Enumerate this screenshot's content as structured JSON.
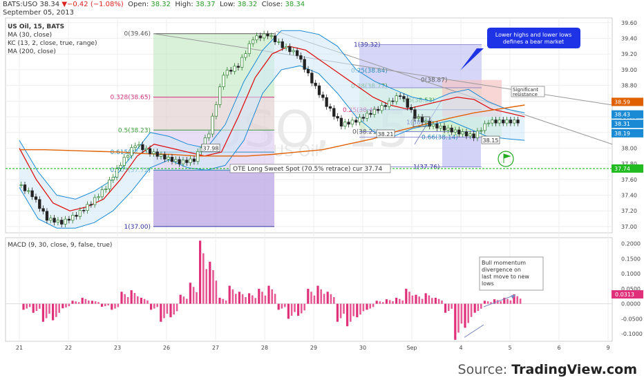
{
  "header": {
    "symbol": "BATS:USO",
    "last": "38.34",
    "change": "▼−0.42 (−1.08%)",
    "open_label": "Open:",
    "open": "38.32",
    "high_label": "High:",
    "high": "38.37",
    "low_label": "Low:",
    "low": "38.32",
    "close_label": "Close:",
    "close": "38.34",
    "date": "September 05, 2013"
  },
  "legend": [
    "US Oil, 15, BATS",
    "MA (30, close)",
    "KC (13, 2, close, true, range)",
    "MA (200, close)"
  ],
  "watermark": {
    "big": "USO, 15",
    "small": "US Oil"
  },
  "macd_title": "MACD (9, 30, close, 9, false, true)",
  "footer": {
    "prefix": "Source: ",
    "brand": "TradingView.com"
  },
  "colors": {
    "price_up": "#2a9d2a",
    "price_down": "#d22",
    "ma30": "#d11",
    "ma200": "#e06000",
    "kc": "#1a8ad4",
    "hist": "#e0307a",
    "ote": "#22bb22"
  },
  "chart_data": [
    {
      "type": "line",
      "title": "US Oil, 15, BATS",
      "x_ticks": [
        "21",
        "22",
        "23",
        "26",
        "27",
        "28",
        "29",
        "30",
        "Sep",
        "4",
        "5",
        "6",
        "9"
      ],
      "y_ticks": [
        "37.00",
        "37.20",
        "37.40",
        "37.60",
        "37.80",
        "38.00",
        "38.20",
        "38.40",
        "38.60",
        "38.80",
        "39.00",
        "39.20",
        "39.40",
        "39.60"
      ],
      "ylim": [
        36.92,
        39.66
      ],
      "price_x": [
        0,
        0.3,
        0.6,
        0.9,
        1.2,
        1.5,
        1.8,
        2.1,
        2.4,
        2.7,
        3.0,
        3.3,
        3.6,
        3.9,
        4.2,
        4.5,
        4.8,
        5.1,
        5.4,
        5.7,
        6.0,
        6.3,
        6.6,
        6.9,
        7.2,
        7.5,
        7.8,
        8.1,
        8.4,
        8.7,
        9.0,
        9.3,
        9.6,
        9.9,
        10.2
      ],
      "price_close": [
        37.55,
        37.4,
        37.1,
        37.05,
        37.15,
        37.3,
        37.5,
        37.8,
        38.05,
        37.95,
        37.88,
        37.82,
        37.85,
        38.2,
        38.95,
        39.05,
        39.4,
        39.45,
        39.3,
        39.2,
        38.85,
        38.55,
        38.3,
        38.35,
        38.45,
        38.55,
        38.68,
        38.4,
        38.3,
        38.25,
        38.2,
        38.15,
        38.34,
        38.34,
        38.34
      ],
      "ma30": [
        38.0,
        37.6,
        37.3,
        37.2,
        37.25,
        37.35,
        37.6,
        37.9,
        38.05,
        38.0,
        37.95,
        37.9,
        37.95,
        38.4,
        38.9,
        39.2,
        39.3,
        39.25,
        39.1,
        38.95,
        38.8,
        38.65,
        38.55,
        38.5,
        38.55,
        38.6,
        38.65,
        38.62,
        38.5,
        38.45,
        38.4
      ],
      "ma200": [
        37.98,
        37.98,
        37.97,
        37.96,
        37.95,
        37.93,
        37.92,
        37.9,
        37.9,
        37.9,
        37.92,
        37.95,
        37.98,
        38.05,
        38.12,
        38.22,
        38.3,
        38.38,
        38.45,
        38.5,
        38.55
      ],
      "kc_upper": [
        38.1,
        37.7,
        37.4,
        37.35,
        37.45,
        37.6,
        37.9,
        38.2,
        38.15,
        38.05,
        38.0,
        38.3,
        38.85,
        39.25,
        39.5,
        39.5,
        39.45,
        39.3,
        39.0,
        38.85,
        38.75,
        38.65,
        38.6,
        38.7,
        38.75,
        38.6,
        38.5,
        38.45
      ],
      "kc_lower": [
        37.5,
        37.1,
        36.98,
        36.98,
        37.05,
        37.2,
        37.45,
        37.75,
        37.85,
        37.75,
        37.72,
        37.78,
        38.1,
        38.7,
        39.0,
        39.05,
        38.95,
        38.7,
        38.4,
        38.2,
        38.15,
        38.25,
        38.3,
        38.35,
        38.25,
        38.15,
        38.12,
        38.1
      ],
      "fib_left": {
        "levels": [
          {
            "label": "0(39.46)",
            "value": 39.46
          },
          {
            "label": "0.328(38.65)",
            "value": 38.65
          },
          {
            "label": "0.5(38.23)",
            "value": 38.23
          },
          {
            "label": "0.615(37.95)",
            "value": 37.95
          },
          {
            "label": "0.705(37.72)",
            "value": 37.72
          },
          {
            "label": "1(37.00)",
            "value": 37.0
          }
        ]
      },
      "fib_right": {
        "levels": [
          {
            "label": "1(39.32)",
            "value": 39.32
          },
          {
            "label": "0.25(38.84)",
            "value": 38.84
          },
          {
            "label": "0.38(38.77)",
            "value": 38.77
          },
          {
            "label": "0.25(38.49)",
            "value": 38.49
          },
          {
            "label": "0.5(38.53)",
            "value": 38.53
          },
          {
            "label": "0(38.21)",
            "value": 38.21
          },
          {
            "label": "1(38.32)",
            "value": 38.32
          },
          {
            "label": "0.66(38.14)",
            "value": 38.14
          },
          {
            "label": "1(37.76)",
            "value": 37.76
          },
          {
            "label": "0(38.87)",
            "value": 38.87
          }
        ]
      },
      "price_labels": [
        "37.98",
        "38.21",
        "38.15"
      ],
      "axis_badges": [
        {
          "text": "38.59",
          "value": 38.59,
          "color": "#e06000"
        },
        {
          "text": "38.43",
          "value": 38.43,
          "color": "#1a8ad4"
        },
        {
          "text": "38.31",
          "value": 38.31,
          "color": "#1a8ad4"
        },
        {
          "text": "38.19",
          "value": 38.19,
          "color": "#1a8ad4"
        },
        {
          "text": "37.74",
          "value": 37.74,
          "color": "#22bb22"
        }
      ],
      "annotations": {
        "ote_text": "OTE Long Sweet Spot (70.5% retrace) cur 37.74",
        "ote_value": 37.74,
        "bear_note": "Lower highs and lower lows defines a bear market",
        "resistance_note": "Significant resistance",
        "bull_note": "Bull momentum divergence on last move to new lows"
      }
    },
    {
      "type": "bar",
      "title": "MACD (9, 30, close, 9, false, true)",
      "y_ticks": [
        "-0.1000",
        "-0.0500",
        "0.0000",
        "0.0500",
        "0.1000",
        "0.1500",
        "0.2000"
      ],
      "ylim": [
        -0.125,
        0.22
      ],
      "badge": "0.0313",
      "hist_x": [
        0,
        0.2,
        0.4,
        0.6,
        0.8,
        1.0,
        1.2,
        1.4,
        1.6,
        1.8,
        2.0,
        2.2,
        2.4,
        2.6,
        2.8,
        3.0,
        3.2,
        3.4,
        3.6,
        3.8,
        4.0,
        4.2,
        4.4,
        4.6,
        4.8,
        5.0,
        5.2,
        5.4,
        5.6,
        5.8,
        6.0,
        6.2,
        6.4,
        6.6,
        6.8,
        7.0,
        7.2,
        7.4,
        7.6,
        7.8,
        8.0,
        8.2,
        8.4,
        8.6,
        8.8,
        9.0,
        9.2,
        9.4,
        9.6,
        9.8,
        10.0
      ],
      "hist_values": [
        -0.02,
        -0.03,
        -0.06,
        -0.055,
        -0.015,
        0.01,
        0.02,
        0.01,
        -0.01,
        -0.02,
        0.04,
        0.045,
        0.02,
        -0.02,
        -0.06,
        -0.045,
        0.03,
        0.07,
        0.21,
        0.14,
        0.02,
        0.06,
        0.04,
        0.035,
        0.05,
        0.06,
        -0.02,
        -0.05,
        -0.04,
        0.05,
        0.06,
        0.04,
        -0.06,
        -0.075,
        -0.045,
        -0.02,
        0.01,
        0.015,
        0.02,
        0.05,
        0.03,
        0.035,
        0.02,
        -0.03,
        -0.12,
        -0.08,
        -0.03,
        0.01,
        0.015,
        0.02,
        0.0313
      ]
    }
  ]
}
